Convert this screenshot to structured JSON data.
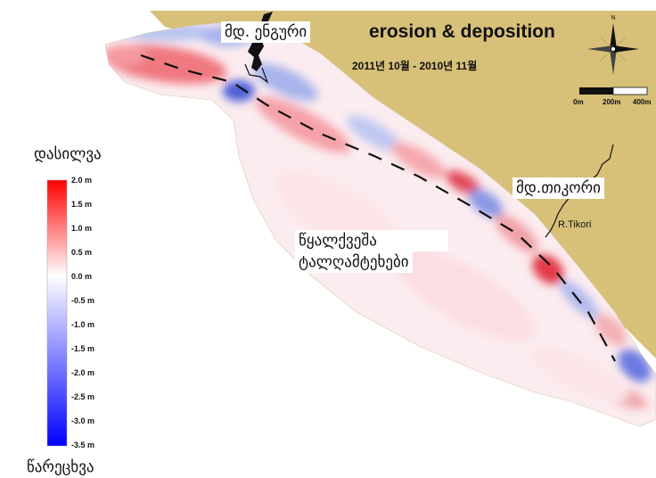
{
  "map": {
    "title": "erosion & deposition",
    "subtitle": "2011년 10월 - 2010년 11월",
    "north_label": "N",
    "land_color": "#d7c078",
    "labels": {
      "enguri": "მდ. ენგური",
      "tikori": "მდ.თიკორი",
      "r_tikori": "R.Tikori",
      "underwater_line1": "წყალქვეშა",
      "underwater_line2": "ტალღამტეხები"
    },
    "legend": {
      "top_label": "დასილვა",
      "bottom_label": "წარეცხვა",
      "ticks": [
        "2.0 m",
        "1.5 m",
        "1.0 m",
        "0.5 m",
        "0.0 m",
        "-0.5 m",
        "-1.0 m",
        "-1.5 m",
        "-2.0 m",
        "-2.5 m",
        "-3.0 m",
        "-3.5 m"
      ],
      "colors": {
        "max": "#ff0000",
        "mid": "#ffffff",
        "min": "#0000ff"
      }
    },
    "scale_bar": {
      "labels": [
        "0m",
        "200m",
        "400m"
      ]
    }
  }
}
